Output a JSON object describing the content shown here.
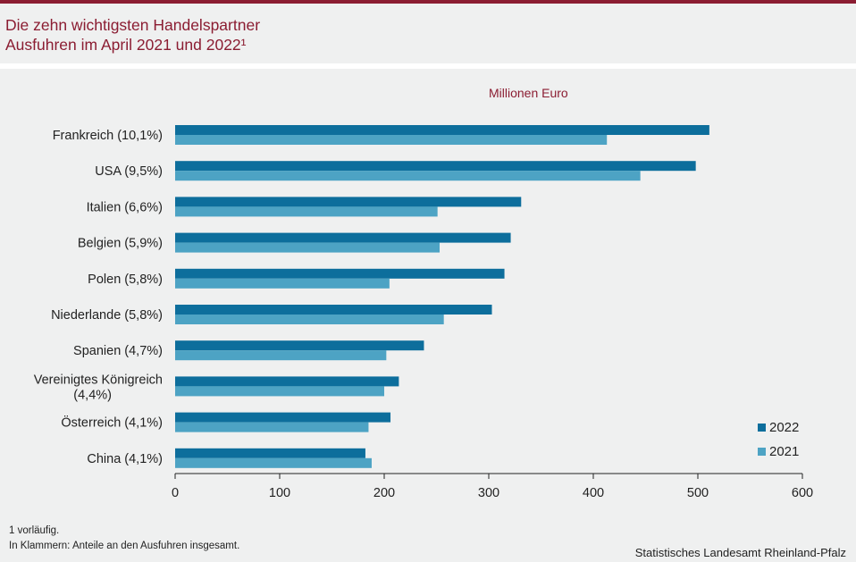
{
  "header": {
    "title_line1": "Die zehn wichtigsten Handelspartner",
    "title_line2": "Ausfuhren im April 2021 und 2022¹"
  },
  "colors": {
    "accent": "#8b1d32",
    "series_2022": "#0d6e9c",
    "series_2021": "#4da3c4"
  },
  "chart_data": {
    "type": "bar",
    "orientation": "horizontal",
    "unit_label": "Millionen  Euro",
    "categories": [
      "Frankreich (10,1%)",
      "USA (9,5%)",
      "Italien (6,6%)",
      "Belgien (5,9%)",
      "Polen (5,8%)",
      "Niederlande (5,8%)",
      "Spanien (4,7%)",
      "Vereinigtes Königreich (4,4%)",
      "Österreich (4,1%)",
      "China (4,1%)"
    ],
    "series": [
      {
        "name": "2022",
        "values": [
          511,
          498,
          331,
          321,
          315,
          303,
          238,
          214,
          206,
          182
        ]
      },
      {
        "name": "2021",
        "values": [
          413,
          445,
          251,
          253,
          205,
          257,
          202,
          200,
          185,
          188
        ]
      }
    ],
    "xlim": [
      0,
      600
    ],
    "xticks": [
      0,
      100,
      200,
      300,
      400,
      500,
      600
    ],
    "legend_position": "bottom-right",
    "grid": false
  },
  "footnotes": {
    "note1": "1 vorläufig.",
    "note2": "In Klammern: Anteile an den Ausfuhren insgesamt."
  },
  "source": "Statistisches Landesamt Rheinland-Pfalz"
}
